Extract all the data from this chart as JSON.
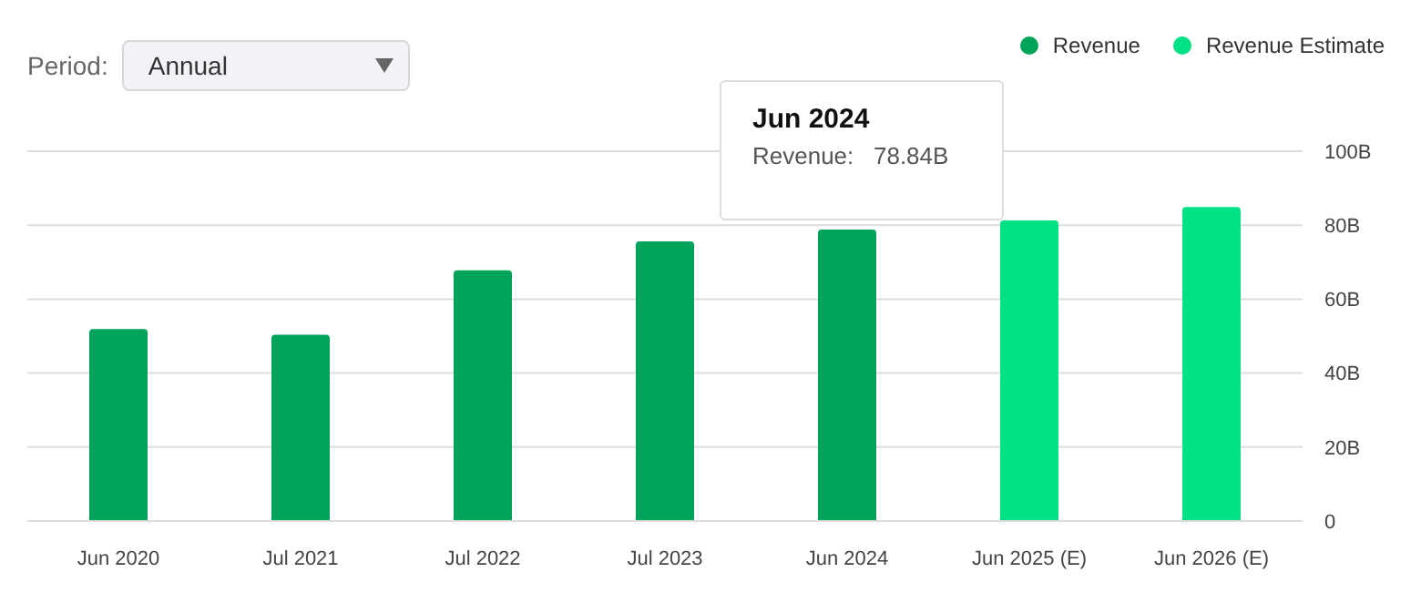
{
  "chart_data": {
    "type": "bar",
    "categories": [
      "Jun 2020",
      "Jul 2021",
      "Jul 2022",
      "Jul 2023",
      "Jun 2024",
      "Jun 2025 (E)",
      "Jun 2026 (E)"
    ],
    "series": [
      {
        "name": "Revenue",
        "color": "#00a35a",
        "values": [
          51.9,
          50.4,
          67.8,
          75.6,
          78.84,
          null,
          null
        ]
      },
      {
        "name": "Revenue Estimate",
        "color": "#00e084",
        "values": [
          null,
          null,
          null,
          null,
          null,
          81.3,
          84.9
        ]
      }
    ],
    "stacked": true,
    "ylim": [
      0,
      100
    ],
    "yticks": [
      {
        "value": 0,
        "label": "0"
      },
      {
        "value": 20,
        "label": "20B"
      },
      {
        "value": 40,
        "label": "40B"
      },
      {
        "value": 60,
        "label": "60B"
      },
      {
        "value": 80,
        "label": "80B"
      },
      {
        "value": 100,
        "label": "100B"
      }
    ],
    "grid": "y",
    "legend": "top right",
    "annotations": [
      "Period:",
      "Annual",
      "Jun 2024",
      "Revenue:   78.84B"
    ]
  }
}
